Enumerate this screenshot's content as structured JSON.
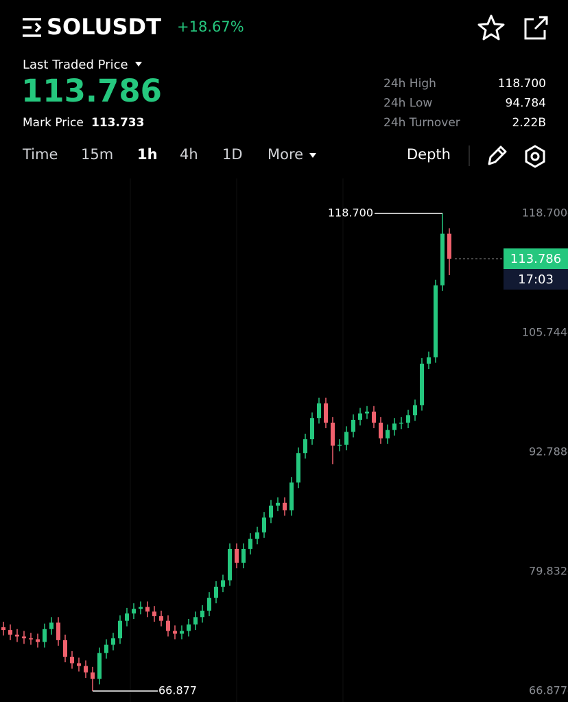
{
  "header": {
    "symbol": "SOLUSDT",
    "change": "+18.67%"
  },
  "price_panel": {
    "label": "Last Traded Price",
    "last_price": "113.786",
    "mark_label": "Mark Price",
    "mark_price": "113.733",
    "stats": [
      {
        "label": "24h High",
        "value": "118.700"
      },
      {
        "label": "24h Low",
        "value": "94.784"
      },
      {
        "label": "24h Turnover",
        "value": "2.22B"
      }
    ]
  },
  "toolbar": {
    "intervals": [
      "Time",
      "15m",
      "1h",
      "4h",
      "1D",
      "More"
    ],
    "active": "1h",
    "depth": "Depth"
  },
  "chart_data": {
    "type": "candlestick",
    "up_color": "#25c77e",
    "down_color": "#f0616d",
    "open": [
      73.8,
      73.5,
      73.0,
      72.8,
      72.6,
      72.5,
      72.2,
      73.6,
      74.3,
      72.4,
      70.6,
      69.9,
      69.6,
      68.9,
      68.2,
      71.0,
      71.9,
      72.6,
      74.5,
      75.3,
      75.8,
      76.0,
      75.5,
      75.0,
      74.5,
      73.4,
      73.1,
      73.4,
      74.1,
      74.9,
      75.6,
      77.0,
      78.2,
      78.9,
      82.3,
      80.8,
      82.3,
      83.4,
      84.1,
      85.7,
      87.0,
      87.3,
      86.5,
      89.5,
      92.7,
      94.2,
      96.5,
      98.1,
      96.0,
      93.5,
      93.6,
      95.0,
      96.3,
      97.0,
      97.2,
      96.0,
      94.3,
      95.2,
      95.9,
      96.0,
      96.8,
      97.9,
      102.4,
      103.1,
      110.9,
      116.5
    ],
    "high": [
      74.4,
      74.1,
      73.6,
      73.4,
      73.2,
      73.1,
      74.2,
      74.9,
      74.9,
      73.0,
      71.2,
      70.5,
      70.2,
      69.5,
      71.6,
      72.5,
      73.2,
      75.1,
      75.9,
      76.4,
      76.6,
      76.6,
      76.1,
      75.6,
      75.1,
      74.0,
      74.0,
      74.7,
      75.5,
      76.2,
      77.6,
      78.8,
      79.5,
      82.9,
      82.9,
      82.9,
      84.0,
      84.7,
      86.3,
      87.6,
      87.9,
      87.9,
      90.1,
      93.3,
      94.8,
      97.1,
      98.7,
      98.7,
      96.6,
      94.2,
      95.6,
      96.9,
      97.6,
      97.8,
      97.8,
      96.6,
      95.8,
      96.5,
      96.6,
      97.4,
      98.5,
      103.0,
      103.7,
      111.5,
      118.7,
      117.1
    ],
    "low": [
      72.9,
      72.4,
      72.2,
      72.0,
      71.9,
      71.6,
      71.6,
      73.0,
      71.8,
      70.0,
      69.3,
      69.0,
      68.3,
      66.877,
      67.6,
      70.4,
      71.3,
      72.0,
      73.9,
      74.7,
      75.2,
      74.9,
      74.4,
      73.9,
      72.8,
      72.5,
      72.5,
      72.8,
      73.5,
      74.3,
      75.0,
      76.4,
      77.6,
      78.3,
      80.2,
      80.2,
      81.7,
      82.8,
      83.5,
      85.1,
      86.4,
      85.9,
      85.9,
      88.9,
      92.1,
      93.6,
      95.9,
      95.4,
      91.5,
      92.9,
      93.0,
      94.4,
      95.7,
      96.4,
      95.4,
      93.7,
      93.7,
      94.6,
      95.3,
      95.4,
      96.2,
      97.3,
      101.8,
      102.5,
      110.3,
      112.0
    ],
    "close": [
      73.5,
      73.0,
      72.8,
      72.6,
      72.5,
      72.2,
      73.6,
      74.3,
      72.4,
      70.6,
      69.9,
      69.6,
      68.9,
      68.2,
      71.0,
      71.9,
      72.6,
      74.5,
      75.3,
      75.8,
      76.0,
      75.5,
      75.0,
      74.5,
      73.4,
      73.1,
      73.4,
      74.1,
      74.9,
      75.6,
      77.0,
      78.2,
      78.9,
      82.3,
      80.8,
      82.3,
      83.4,
      84.1,
      85.7,
      87.0,
      87.3,
      86.5,
      89.5,
      92.7,
      94.2,
      96.5,
      98.1,
      96.0,
      93.5,
      93.6,
      95.0,
      96.3,
      97.0,
      97.2,
      96.0,
      94.3,
      95.2,
      95.9,
      96.0,
      96.8,
      97.9,
      102.4,
      103.1,
      110.9,
      116.5,
      113.786
    ],
    "ylim": [
      65.69,
      122.5
    ],
    "yticks": [
      {
        "value": 118.7,
        "label": "118.700"
      },
      105.744,
      92.788,
      79.832,
      66.877
    ],
    "last_price": 113.786,
    "countdown": "17:03",
    "high_marker": {
      "value": 118.7,
      "label": "118.700"
    },
    "low_marker": 66.877
  }
}
